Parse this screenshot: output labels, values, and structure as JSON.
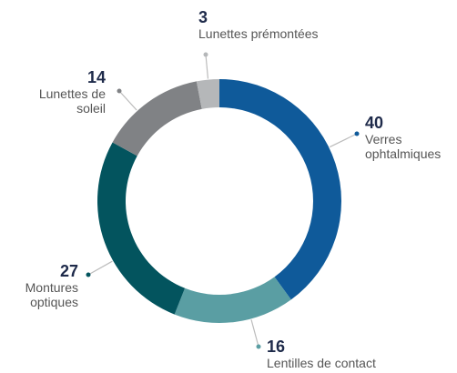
{
  "chart_data": {
    "type": "donut",
    "categories": [
      "Verres ophtalmiques",
      "Lentilles de contact",
      "Montures optiques",
      "Lunettes de soleil",
      "Lunettes prémontées"
    ],
    "values": [
      40,
      16,
      27,
      14,
      3
    ],
    "colors": [
      "#0f5a9a",
      "#5a9ea3",
      "#03545e",
      "#808285",
      "#b5b7b9"
    ]
  }
}
